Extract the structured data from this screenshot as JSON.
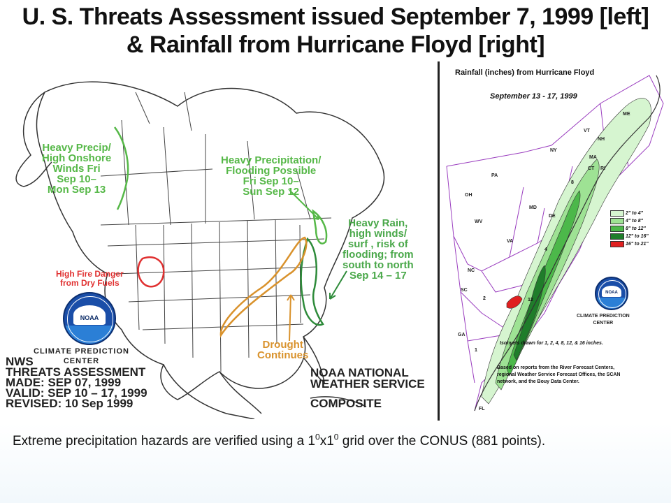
{
  "title": {
    "line1": "U. S. Threats Assessment issued September 7, 1999 [left]",
    "line2": "& Rainfall from Hurricane Floyd [right]"
  },
  "left_map": {
    "annotations": {
      "heavy_precip_onshore": [
        "Heavy Precip/",
        "High Onshore",
        "Winds Fri",
        "Sep 10–",
        "Mon Sep 13"
      ],
      "heavy_precip_flooding": [
        "Heavy Precipitation/",
        "Flooding Possible",
        "Fri Sep 10–",
        "Sun Sep 12"
      ],
      "heavy_rain": [
        "Heavy Rain,",
        "high winds/",
        "surf , risk of",
        "flooding; from",
        "south to north",
        "Sep 14 – 17"
      ],
      "fire_danger": [
        "High Fire Danger",
        "from Dry Fuels"
      ],
      "drought": [
        "Drought",
        "Continues"
      ]
    },
    "logo_text": "NOAA",
    "cpc_label": [
      "CLIMATE PREDICTION",
      "CENTER"
    ],
    "nws_block": [
      "NWS",
      "THREATS ASSESSMENT",
      "MADE: SEP 07, 1999",
      "VALID: SEP 10 – 17, 1999",
      "REVISED: 10 Sep 1999"
    ],
    "noaa_nws_block": [
      "NOAA NATIONAL",
      "WEATHER SERVICE"
    ],
    "composite_label": "COMPOSITE",
    "colors": {
      "green": "#56b848",
      "dark_green": "#2e8b3a",
      "red": "#e03030",
      "orange": "#d9922c"
    }
  },
  "right_map": {
    "title": "Rainfall (inches) from Hurricane Floyd",
    "dates": "September 13 - 17, 1999",
    "legend": [
      {
        "label": "2\" to 4\"",
        "color": "#d6f5d0"
      },
      {
        "label": "4\" to 8\"",
        "color": "#9ee294"
      },
      {
        "label": "8\" to 12\"",
        "color": "#4cb84a"
      },
      {
        "label": "12\" to 16\"",
        "color": "#1f7d2a"
      },
      {
        "label": "16\" to 21\"",
        "color": "#e02020"
      }
    ],
    "logo_text": "NOAA",
    "cpc_label": [
      "CLIMATE PREDICTION",
      "CENTER"
    ],
    "isohyet_note": "Isohyets drawn for 1, 2, 4, 8, 12, & 16 inches.",
    "report_note": [
      "Based on reports from the River Forecast Centers,",
      "regional Weather Service Forecast Offices, the SCAN",
      "network, and the Bouy Data Center."
    ],
    "states": [
      "ME",
      "VT",
      "NH",
      "MA",
      "CT",
      "RI",
      "NY",
      "PA",
      "OH",
      "WV",
      "MD",
      "DE",
      "VA",
      "NC",
      "SC",
      "GA",
      "FL"
    ],
    "isohyet_values": [
      "1",
      "2",
      "4",
      "8",
      "12"
    ]
  },
  "caption": {
    "prefix": "Extreme precipitation hazards are verified using a 1",
    "sup1": "0",
    "middle": "x1",
    "sup2": "0",
    "suffix": " grid over the CONUS (881 points)."
  }
}
